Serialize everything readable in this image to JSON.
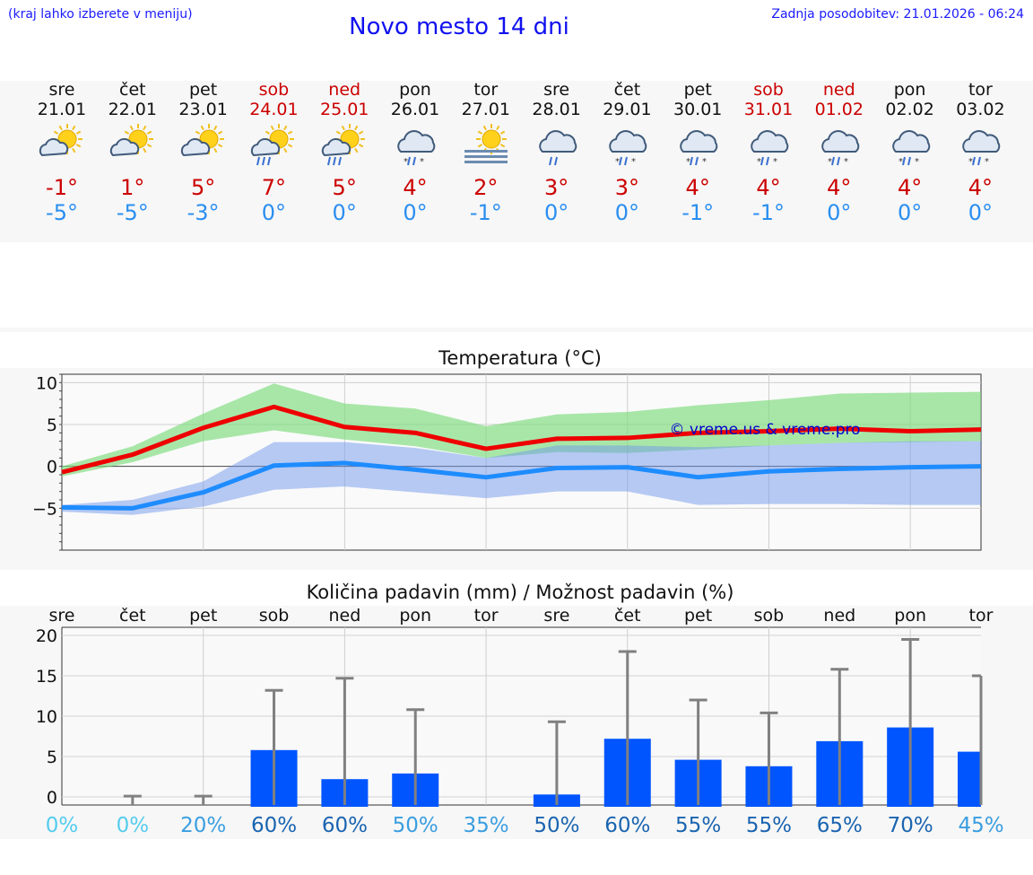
{
  "header": {
    "hint": "(kraj lahko izberete v meniju)",
    "title": "Novo mesto 14 dni",
    "updated": "Zadnja posodobitev: 21.01.2026 - 06:24"
  },
  "colors": {
    "max_line": "#ee0000",
    "min_line": "#1e8cff",
    "max_band": "#7ddb7d",
    "min_band": "#6f97ec",
    "bar": "#0055ff",
    "whisker": "#808080"
  },
  "days": [
    {
      "name": "sre",
      "date": "21.01",
      "weekend": false,
      "icon": "sun-cloud-icon",
      "tmax": "-1°",
      "tmin": "-5°"
    },
    {
      "name": "čet",
      "date": "22.01",
      "weekend": false,
      "icon": "sun-cloud-icon",
      "tmax": "1°",
      "tmin": "-5°"
    },
    {
      "name": "pet",
      "date": "23.01",
      "weekend": false,
      "icon": "sun-cloud-icon",
      "tmax": "5°",
      "tmin": "-3°"
    },
    {
      "name": "sob",
      "date": "24.01",
      "weekend": true,
      "icon": "sun-cloud-rain-icon",
      "tmax": "7°",
      "tmin": "0°"
    },
    {
      "name": "ned",
      "date": "25.01",
      "weekend": true,
      "icon": "sun-cloud-rain-icon",
      "tmax": "5°",
      "tmin": "0°"
    },
    {
      "name": "pon",
      "date": "26.01",
      "weekend": false,
      "icon": "cloud-sleet-icon",
      "tmax": "4°",
      "tmin": "0°"
    },
    {
      "name": "tor",
      "date": "27.01",
      "weekend": false,
      "icon": "sun-fog-icon",
      "tmax": "2°",
      "tmin": "-1°"
    },
    {
      "name": "sre",
      "date": "28.01",
      "weekend": false,
      "icon": "cloud-rain-icon",
      "tmax": "3°",
      "tmin": "0°"
    },
    {
      "name": "čet",
      "date": "29.01",
      "weekend": false,
      "icon": "cloud-sleet-icon",
      "tmax": "3°",
      "tmin": "0°"
    },
    {
      "name": "pet",
      "date": "30.01",
      "weekend": false,
      "icon": "cloud-sleet-icon",
      "tmax": "4°",
      "tmin": "-1°"
    },
    {
      "name": "sob",
      "date": "31.01",
      "weekend": true,
      "icon": "cloud-sleet-icon",
      "tmax": "4°",
      "tmin": "-1°"
    },
    {
      "name": "ned",
      "date": "01.02",
      "weekend": true,
      "icon": "cloud-sleet-icon",
      "tmax": "4°",
      "tmin": "0°"
    },
    {
      "name": "pon",
      "date": "02.02",
      "weekend": false,
      "icon": "cloud-sleet-icon",
      "tmax": "4°",
      "tmin": "0°"
    },
    {
      "name": "tor",
      "date": "03.02",
      "weekend": false,
      "icon": "cloud-sleet-icon",
      "tmax": "4°",
      "tmin": "0°"
    }
  ],
  "chart_data": [
    {
      "type": "line",
      "title": "Temperatura (°C)",
      "ylim": [
        -10,
        11
      ],
      "yticks": [
        10,
        5,
        0,
        -5
      ],
      "ytick_labels": [
        "10",
        "5",
        "0",
        "−5"
      ],
      "x": [
        0,
        1,
        2,
        3,
        4,
        5,
        6,
        7,
        8,
        9,
        10,
        11,
        12,
        13
      ],
      "series": [
        {
          "name": "max",
          "values": [
            -0.7,
            1.4,
            4.6,
            7.1,
            4.7,
            4.0,
            2.1,
            3.3,
            3.4,
            4.0,
            4.2,
            4.5,
            4.2,
            4.4
          ],
          "band_low": [
            -1.2,
            0.5,
            3.0,
            4.3,
            3.2,
            2.4,
            1.0,
            1.7,
            1.6,
            2.0,
            2.5,
            2.8,
            2.9,
            3.0
          ],
          "band_high": [
            0.0,
            2.4,
            6.3,
            9.9,
            7.5,
            6.9,
            4.8,
            6.2,
            6.5,
            7.3,
            7.9,
            8.7,
            8.8,
            8.9
          ]
        },
        {
          "name": "min",
          "values": [
            -4.9,
            -5.0,
            -3.1,
            0.1,
            0.4,
            -0.4,
            -1.3,
            -0.2,
            -0.1,
            -1.3,
            -0.6,
            -0.3,
            -0.1,
            0.0
          ],
          "band_low": [
            -5.4,
            -5.8,
            -4.8,
            -2.8,
            -2.4,
            -3.1,
            -3.8,
            -3.0,
            -3.0,
            -4.6,
            -4.5,
            -4.5,
            -4.6,
            -4.6
          ],
          "band_high": [
            -4.6,
            -4.0,
            -1.8,
            2.9,
            2.9,
            2.2,
            1.0,
            2.5,
            2.5,
            2.3,
            2.5,
            2.8,
            3.0,
            3.0
          ]
        }
      ],
      "annotation": "© vreme.us & vreme.pro"
    },
    {
      "type": "bar",
      "title": "Količina padavin (mm) / Možnost padavin (%)",
      "categories": [
        "sre",
        "čet",
        "pet",
        "sob",
        "ned",
        "pon",
        "tor",
        "sre",
        "čet",
        "pet",
        "sob",
        "ned",
        "pon",
        "tor"
      ],
      "ylim": [
        -1,
        21
      ],
      "yticks": [
        20,
        15,
        10,
        5,
        0
      ],
      "values": [
        0,
        0,
        0,
        5.8,
        2.2,
        2.9,
        0,
        0.3,
        7.2,
        4.6,
        3.8,
        6.9,
        8.6,
        5.6
      ],
      "max_values": [
        0,
        0.1,
        0.1,
        13.2,
        14.7,
        10.8,
        0,
        9.3,
        18.0,
        12.0,
        10.4,
        15.8,
        19.5,
        15.0
      ],
      "probabilities": [
        "0%",
        "0%",
        "20%",
        "60%",
        "60%",
        "50%",
        "35%",
        "50%",
        "60%",
        "55%",
        "55%",
        "65%",
        "70%",
        "45%"
      ],
      "probability_colors": [
        "#55ccee",
        "#55ccee",
        "#3a9ee0",
        "#1a64b0",
        "#1a64b0",
        "#3a9ee0",
        "#3a9ee0",
        "#1a64b0",
        "#1a64b0",
        "#1a64b0",
        "#1a64b0",
        "#1a64b0",
        "#1a64b0",
        "#3a9ee0"
      ]
    }
  ]
}
